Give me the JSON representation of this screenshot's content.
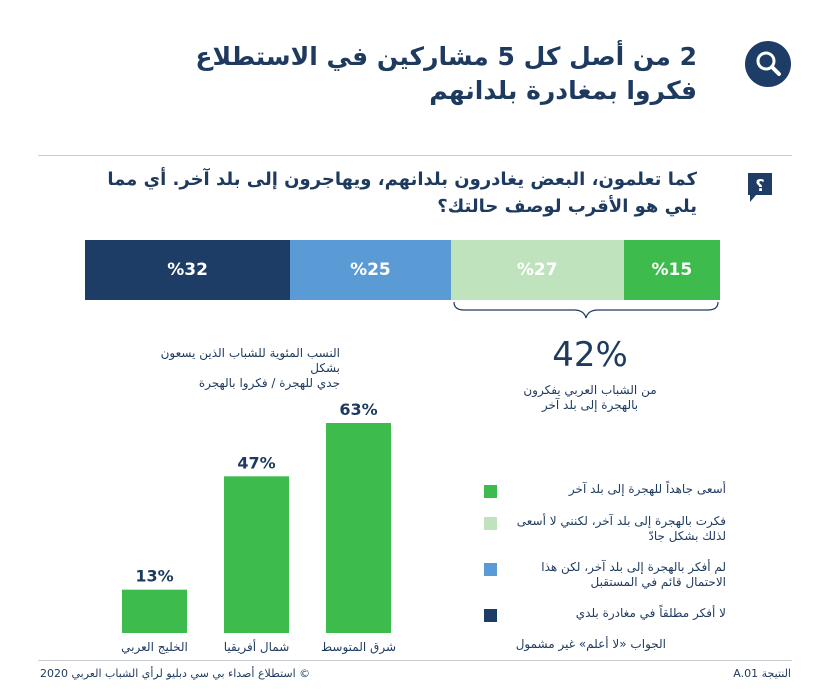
{
  "header": {
    "title_line1": "2 من أصل كل 5 مشاركين في الاستطلاع",
    "title_line2": "فكروا بمغادرة بلدانهم",
    "icon": "search-icon",
    "question_line1": "كما تعلمون، البعض يغادرون بلدانهم، ويهاجرون إلى بلد آخر. أي مما",
    "question_line2": "يلي هو الأقرب لوصف حالتك؟",
    "question_icon": "question-bubble-icon"
  },
  "colors": {
    "dark_navy": "#1d3c66",
    "blue": "#5b9bd5",
    "light_green": "#bfe3bd",
    "green": "#3dbb4d"
  },
  "chart_data": [
    {
      "type": "bar",
      "orientation": "horizontal-stacked",
      "segments": [
        {
          "label": "%32",
          "value": 32,
          "color": "#1d3c66",
          "legend": "لا أفكر مطلقاً في مغادرة بلدي"
        },
        {
          "label": "%25",
          "value": 25,
          "color": "#5b9bd5",
          "legend": "لم أفكر بالهجرة إلى بلد آخر، لكن هذا الاحتمال قائم في المستقبل"
        },
        {
          "label": "%27",
          "value": 27,
          "color": "#bfe3bd",
          "legend": "فكرت بالهجرة إلى بلد آخر، لكنني لا أسعى لذلك بشكل جادّ"
        },
        {
          "label": "%15",
          "value": 15,
          "color": "#3dbb4d",
          "legend": "أسعى جاهداً للهجرة إلى بلد آخر"
        }
      ],
      "bracket_total": "42%",
      "bracket_note_line1": "من الشباب العربي يفكرون",
      "bracket_note_line2": "بالهجرة إلى بلد آخر"
    },
    {
      "type": "bar",
      "title_line1": "النسب المئوية للشباب الذين يسعون بشكل",
      "title_line2": "جدي للهجرة / فكروا بالهجرة",
      "categories": [
        "الخليج العربي",
        "شمال أفريقيا",
        "شرق المتوسط"
      ],
      "values": [
        13,
        47,
        63
      ],
      "value_labels": [
        "13%",
        "47%",
        "63%"
      ],
      "ylim": [
        0,
        63
      ],
      "color": "#3dbb4d"
    }
  ],
  "legend": {
    "items": [
      {
        "text": "أسعى جاهداً للهجرة إلى بلد آخر",
        "color": "#3dbb4d"
      },
      {
        "text": "فكرت بالهجرة إلى بلد آخر، لكنني لا أسعى لذلك بشكل جادّ",
        "color": "#bfe3bd"
      },
      {
        "text": "لم أفكر بالهجرة إلى بلد آخر، لكن هذا الاحتمال قائم في المستقبل",
        "color": "#5b9bd5"
      },
      {
        "text": "لا أفكر مطلقاً في مغادرة بلدي",
        "color": "#1d3c66"
      }
    ],
    "answer_note": "الجواب «لا أعلم» غير مشمول"
  },
  "footer": {
    "source": "© استطلاع أصداء بي سي دبليو لرأي الشباب العربي 2020",
    "result_id": "النتيجة A.01"
  }
}
